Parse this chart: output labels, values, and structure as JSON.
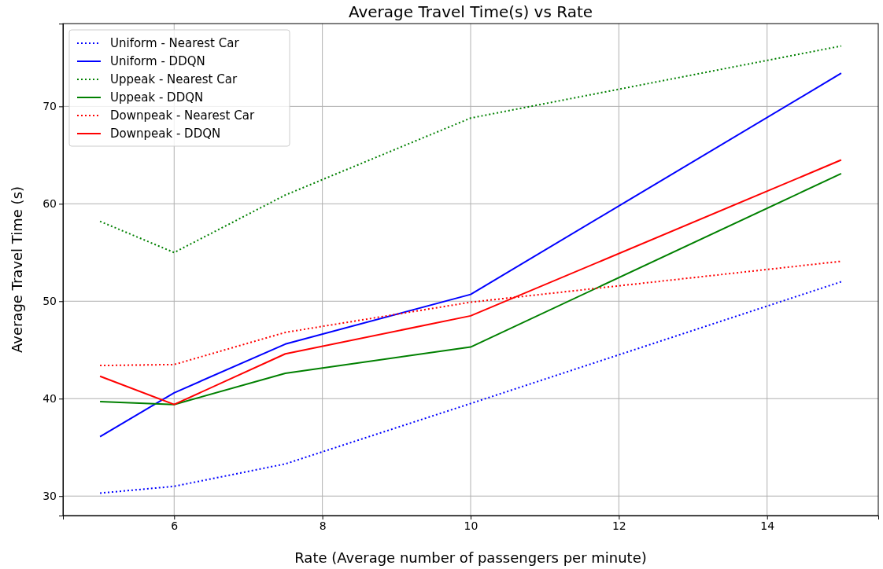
{
  "chart_data": {
    "type": "line",
    "title": "Average Travel Time(s) vs Rate",
    "xlabel": "Rate (Average number of passengers per minute)",
    "ylabel": "Average Travel Time (s)",
    "x": [
      5,
      6,
      7.5,
      10,
      15
    ],
    "xlim": [
      4.5,
      15.5
    ],
    "xticks": [
      6,
      8,
      10,
      12,
      14
    ],
    "ylim": [
      28,
      78.5
    ],
    "yticks": [
      30,
      40,
      50,
      60,
      70
    ],
    "grid": true,
    "legend": "top left",
    "series": [
      {
        "name": "Uniform - Nearest Car",
        "color": "#0000ff",
        "line_style": "dotted",
        "values": [
          30.3,
          31.0,
          33.3,
          39.5,
          52.0
        ]
      },
      {
        "name": "Uniform - DDQN",
        "color": "#0000ff",
        "line_style": "solid",
        "values": [
          36.1,
          40.6,
          45.6,
          50.7,
          73.4
        ]
      },
      {
        "name": "Uppeak - Nearest Car",
        "color": "#008000",
        "line_style": "dotted",
        "values": [
          58.2,
          55.0,
          60.9,
          68.8,
          76.2
        ]
      },
      {
        "name": "Uppeak - DDQN",
        "color": "#008000",
        "line_style": "solid",
        "values": [
          39.7,
          39.4,
          42.6,
          45.3,
          63.1
        ]
      },
      {
        "name": "Downpeak - Nearest Car",
        "color": "#ff0000",
        "line_style": "dotted",
        "values": [
          43.4,
          43.5,
          46.8,
          49.9,
          54.1
        ]
      },
      {
        "name": "Downpeak - DDQN",
        "color": "#ff0000",
        "line_style": "solid",
        "values": [
          42.3,
          39.4,
          44.6,
          48.5,
          64.5
        ]
      }
    ]
  }
}
